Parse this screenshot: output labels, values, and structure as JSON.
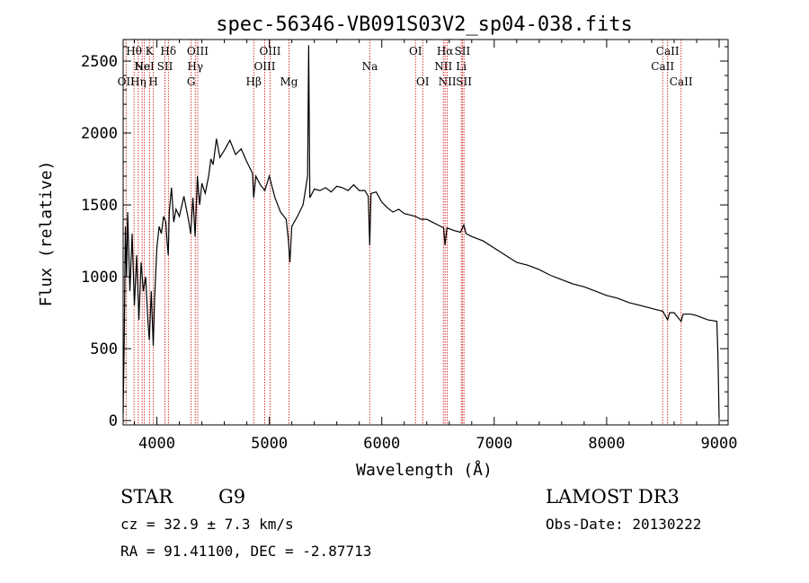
{
  "chart_data": {
    "type": "line",
    "title": "spec-56346-VB091S03V2_sp04-038.fits",
    "xlabel": "Wavelength (Å)",
    "ylabel": "Flux (relative)",
    "xlim": [
      3700,
      9080
    ],
    "ylim": [
      -30,
      2650
    ],
    "x_ticks": [
      4000,
      5000,
      6000,
      7000,
      8000,
      9000
    ],
    "y_ticks": [
      0,
      500,
      1000,
      1500,
      2000,
      2500
    ],
    "series": [
      {
        "name": "spectrum",
        "points": [
          [
            3700,
            50
          ],
          [
            3710,
            600
          ],
          [
            3720,
            1350
          ],
          [
            3730,
            1000
          ],
          [
            3740,
            1450
          ],
          [
            3760,
            900
          ],
          [
            3780,
            1300
          ],
          [
            3800,
            800
          ],
          [
            3820,
            1150
          ],
          [
            3840,
            700
          ],
          [
            3860,
            1100
          ],
          [
            3880,
            900
          ],
          [
            3900,
            1000
          ],
          [
            3920,
            700
          ],
          [
            3933,
            560
          ],
          [
            3950,
            900
          ],
          [
            3968,
            520
          ],
          [
            3980,
            850
          ],
          [
            4000,
            1200
          ],
          [
            4020,
            1350
          ],
          [
            4040,
            1300
          ],
          [
            4060,
            1420
          ],
          [
            4080,
            1380
          ],
          [
            4090,
            1250
          ],
          [
            4101,
            1150
          ],
          [
            4110,
            1450
          ],
          [
            4130,
            1620
          ],
          [
            4150,
            1380
          ],
          [
            4170,
            1470
          ],
          [
            4200,
            1420
          ],
          [
            4240,
            1560
          ],
          [
            4280,
            1400
          ],
          [
            4300,
            1300
          ],
          [
            4320,
            1550
          ],
          [
            4340,
            1280
          ],
          [
            4360,
            1700
          ],
          [
            4380,
            1500
          ],
          [
            4400,
            1650
          ],
          [
            4430,
            1580
          ],
          [
            4460,
            1700
          ],
          [
            4480,
            1820
          ],
          [
            4500,
            1780
          ],
          [
            4530,
            1960
          ],
          [
            4560,
            1830
          ],
          [
            4600,
            1880
          ],
          [
            4650,
            1950
          ],
          [
            4700,
            1850
          ],
          [
            4750,
            1890
          ],
          [
            4800,
            1800
          ],
          [
            4850,
            1720
          ],
          [
            4861,
            1550
          ],
          [
            4880,
            1700
          ],
          [
            4920,
            1640
          ],
          [
            4960,
            1600
          ],
          [
            5000,
            1700
          ],
          [
            5050,
            1550
          ],
          [
            5100,
            1450
          ],
          [
            5150,
            1400
          ],
          [
            5170,
            1250
          ],
          [
            5183,
            1100
          ],
          [
            5200,
            1350
          ],
          [
            5250,
            1420
          ],
          [
            5300,
            1500
          ],
          [
            5320,
            1600
          ],
          [
            5340,
            1700
          ],
          [
            5350,
            2610
          ],
          [
            5360,
            1550
          ],
          [
            5400,
            1610
          ],
          [
            5450,
            1600
          ],
          [
            5500,
            1620
          ],
          [
            5550,
            1590
          ],
          [
            5600,
            1630
          ],
          [
            5650,
            1620
          ],
          [
            5700,
            1600
          ],
          [
            5750,
            1640
          ],
          [
            5800,
            1600
          ],
          [
            5850,
            1600
          ],
          [
            5880,
            1560
          ],
          [
            5893,
            1220
          ],
          [
            5905,
            1580
          ],
          [
            5950,
            1590
          ],
          [
            6000,
            1520
          ],
          [
            6050,
            1480
          ],
          [
            6100,
            1450
          ],
          [
            6150,
            1470
          ],
          [
            6200,
            1440
          ],
          [
            6250,
            1430
          ],
          [
            6300,
            1420
          ],
          [
            6350,
            1400
          ],
          [
            6400,
            1400
          ],
          [
            6450,
            1380
          ],
          [
            6500,
            1360
          ],
          [
            6550,
            1340
          ],
          [
            6563,
            1220
          ],
          [
            6580,
            1340
          ],
          [
            6650,
            1320
          ],
          [
            6700,
            1310
          ],
          [
            6730,
            1360
          ],
          [
            6750,
            1300
          ],
          [
            6800,
            1280
          ],
          [
            6900,
            1250
          ],
          [
            7000,
            1200
          ],
          [
            7100,
            1150
          ],
          [
            7200,
            1100
          ],
          [
            7300,
            1080
          ],
          [
            7400,
            1050
          ],
          [
            7500,
            1010
          ],
          [
            7600,
            980
          ],
          [
            7700,
            950
          ],
          [
            7800,
            930
          ],
          [
            7900,
            900
          ],
          [
            8000,
            870
          ],
          [
            8100,
            850
          ],
          [
            8200,
            820
          ],
          [
            8300,
            800
          ],
          [
            8400,
            780
          ],
          [
            8500,
            760
          ],
          [
            8542,
            700
          ],
          [
            8560,
            750
          ],
          [
            8600,
            750
          ],
          [
            8662,
            690
          ],
          [
            8680,
            740
          ],
          [
            8750,
            740
          ],
          [
            8800,
            730
          ],
          [
            8900,
            700
          ],
          [
            8980,
            690
          ],
          [
            8990,
            450
          ],
          [
            9000,
            20
          ]
        ]
      }
    ],
    "lines": [
      {
        "wavelength": 3726,
        "label": "OII",
        "row": 3
      },
      {
        "wavelength": 3797,
        "label": "Hθ",
        "row": 1
      },
      {
        "wavelength": 3835,
        "label": "Hη",
        "row": 3
      },
      {
        "wavelength": 3869,
        "label": "Ne",
        "row": 2
      },
      {
        "wavelength": 3889,
        "label": "HeI",
        "row": 2
      },
      {
        "wavelength": 3934,
        "label": "K",
        "row": 1
      },
      {
        "wavelength": 3969,
        "label": "H",
        "row": 3
      },
      {
        "wavelength": 4072,
        "label": "SII",
        "row": 2
      },
      {
        "wavelength": 4102,
        "label": "Hδ",
        "row": 1
      },
      {
        "wavelength": 4305,
        "label": "G",
        "row": 3
      },
      {
        "wavelength": 4341,
        "label": "Hγ",
        "row": 2
      },
      {
        "wavelength": 4363,
        "label": "OIII",
        "row": 1
      },
      {
        "wavelength": 4861,
        "label": "Hβ",
        "row": 3
      },
      {
        "wavelength": 4959,
        "label": "OIII",
        "row": 2
      },
      {
        "wavelength": 5007,
        "label": "OIII",
        "row": 1
      },
      {
        "wavelength": 5175,
        "label": "Mg",
        "row": 3
      },
      {
        "wavelength": 5894,
        "label": "Na",
        "row": 2
      },
      {
        "wavelength": 6300,
        "label": "OI",
        "row": 1
      },
      {
        "wavelength": 6364,
        "label": "OI",
        "row": 3
      },
      {
        "wavelength": 6548,
        "label": "NII",
        "row": 2
      },
      {
        "wavelength": 6563,
        "label": "Hα",
        "row": 1
      },
      {
        "wavelength": 6583,
        "label": "NII",
        "row": 3
      },
      {
        "wavelength": 6707,
        "label": "Li",
        "row": 2
      },
      {
        "wavelength": 6717,
        "label": "SII",
        "row": 1
      },
      {
        "wavelength": 6731,
        "label": "SII",
        "row": 3
      },
      {
        "wavelength": 8498,
        "label": "CaII",
        "row": 2
      },
      {
        "wavelength": 8542,
        "label": "CaII",
        "row": 1
      },
      {
        "wavelength": 8662,
        "label": "CaII",
        "row": 3
      }
    ],
    "grid": false,
    "colors": {
      "spectrum": "#000000",
      "line_marker": "#cc0000",
      "axes": "#000000"
    }
  },
  "info": {
    "class": "STAR",
    "subclass": "G9",
    "survey": "LAMOST DR3",
    "redshift": "cz = 32.9 ± 7.3 km/s",
    "obsdate": "Obs-Date: 20130222",
    "coords": "RA =  91.41100, DEC =  -2.87713"
  }
}
